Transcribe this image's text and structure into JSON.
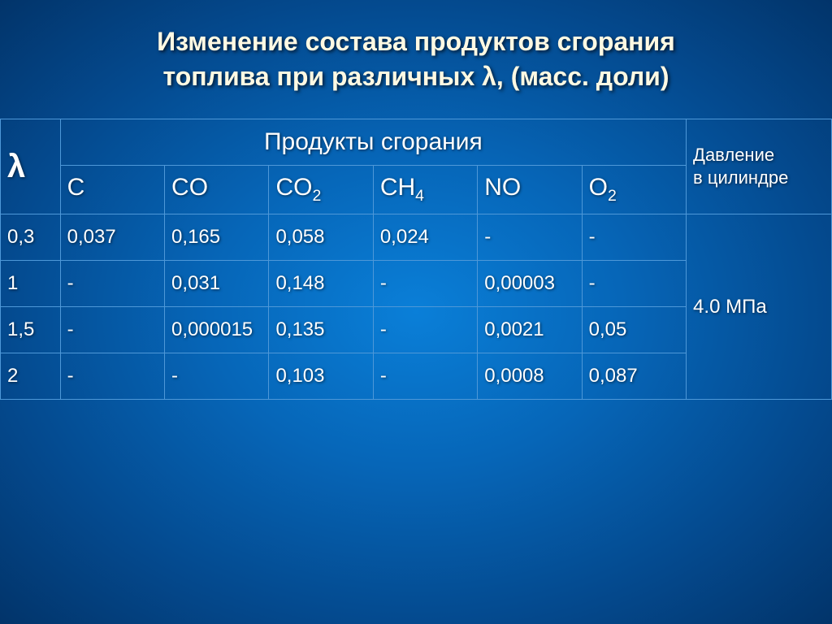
{
  "title_line1": "Изменение состава продуктов сгорания",
  "title_line2": "топлива при различных λ, (масс. доли)",
  "lambda_symbol": "λ",
  "section_header": "Продукты сгорания",
  "pressure_header_line1": "Давление",
  "pressure_header_line2": "в цилиндре",
  "pressure_value": "4.0 МПа",
  "columns": {
    "c": {
      "base": "C",
      "sub": ""
    },
    "co": {
      "base": "CO",
      "sub": ""
    },
    "co2": {
      "base": "CO",
      "sub": "2"
    },
    "ch4": {
      "base": "CH",
      "sub": "4"
    },
    "no": {
      "base": "NO",
      "sub": ""
    },
    "o2": {
      "base": "O",
      "sub": "2"
    }
  },
  "rows": [
    {
      "lambda": "0,3",
      "c": "0,037",
      "co": "0,165",
      "co2": "0,058",
      "ch4": "0,024",
      "no": "-",
      "o2": "-"
    },
    {
      "lambda": "1",
      "c": "-",
      "co": "0,031",
      "co2": "0,148",
      "ch4": "-",
      "no": "0,00003",
      "o2": "-"
    },
    {
      "lambda": "1,5",
      "c": "-",
      "co": "0,000015",
      "co2": "0,135",
      "ch4": "-",
      "no": "0,0021",
      "o2": "0,05"
    },
    {
      "lambda": "2",
      "c": "-",
      "co": "-",
      "co2": "0,103",
      "ch4": "-",
      "no": "0,0008",
      "o2": "0,087"
    }
  ],
  "colors": {
    "title_color": "#fff9e3",
    "text_color": "#ffffff",
    "border_color": "#4e98d8",
    "bg_center": "#0a7fd8",
    "bg_edge": "#02346a"
  },
  "typography": {
    "title_fontsize": 32,
    "lambda_fontsize": 40,
    "header_fontsize": 30,
    "cell_fontsize": 24,
    "pressure_header_fontsize": 22
  }
}
